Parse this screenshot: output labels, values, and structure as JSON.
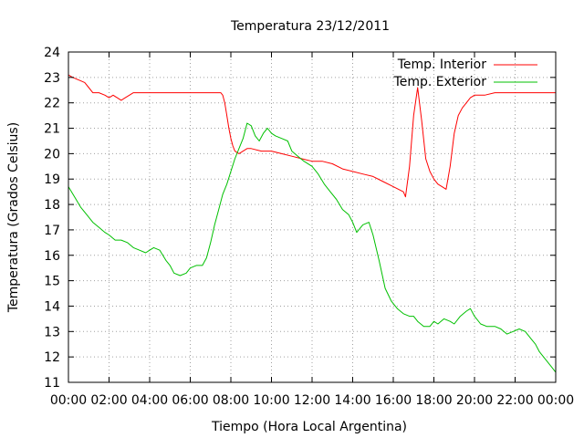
{
  "chart_data": {
    "type": "line",
    "title": "Temperatura 23/12/2011",
    "xlabel": "Tiempo (Hora Local Argentina)",
    "ylabel": "Temperatura (Grados Celsius)",
    "xlim": [
      0,
      24
    ],
    "ylim": [
      11,
      24
    ],
    "x_ticks": [
      "00:00",
      "02:00",
      "04:00",
      "06:00",
      "08:00",
      "10:00",
      "12:00",
      "14:00",
      "16:00",
      "18:00",
      "20:00",
      "22:00",
      "00:00"
    ],
    "y_ticks": [
      "11",
      "12",
      "13",
      "14",
      "15",
      "16",
      "17",
      "18",
      "19",
      "20",
      "21",
      "22",
      "23",
      "24"
    ],
    "grid": true,
    "legend_position": "top-right",
    "series": [
      {
        "name": "Temp. Interior",
        "color": "#ff0000",
        "x": [
          0,
          0.2,
          0.5,
          0.8,
          1.0,
          1.2,
          1.5,
          1.8,
          2.0,
          2.2,
          2.4,
          2.6,
          2.8,
          3.0,
          3.2,
          4.0,
          5.0,
          6.0,
          7.0,
          7.5,
          7.6,
          7.7,
          7.8,
          7.9,
          8.0,
          8.1,
          8.2,
          8.4,
          8.6,
          8.8,
          9.0,
          9.5,
          10.0,
          10.5,
          11.0,
          11.5,
          12.0,
          12.5,
          13.0,
          13.5,
          14.0,
          14.5,
          15.0,
          15.5,
          16.0,
          16.5,
          16.6,
          16.8,
          17.0,
          17.2,
          17.4,
          17.6,
          17.8,
          18.0,
          18.2,
          18.4,
          18.6,
          18.8,
          19.0,
          19.2,
          19.4,
          19.6,
          19.8,
          20.0,
          20.5,
          21.0,
          22.0,
          23.0,
          24.0
        ],
        "values": [
          23.1,
          23.0,
          22.9,
          22.8,
          22.6,
          22.4,
          22.4,
          22.3,
          22.2,
          22.3,
          22.2,
          22.1,
          22.2,
          22.3,
          22.4,
          22.4,
          22.4,
          22.4,
          22.4,
          22.4,
          22.3,
          22.0,
          21.5,
          21.0,
          20.6,
          20.3,
          20.1,
          20.0,
          20.1,
          20.2,
          20.2,
          20.1,
          20.1,
          20.0,
          19.9,
          19.8,
          19.7,
          19.7,
          19.6,
          19.4,
          19.3,
          19.2,
          19.1,
          18.9,
          18.7,
          18.5,
          18.3,
          19.5,
          21.5,
          22.6,
          21.3,
          19.8,
          19.3,
          19.0,
          18.8,
          18.7,
          18.6,
          19.5,
          20.8,
          21.5,
          21.8,
          22.0,
          22.2,
          22.3,
          22.3,
          22.4,
          22.4,
          22.4,
          22.4
        ]
      },
      {
        "name": "Temp. Exterior",
        "color": "#00c000",
        "x": [
          0,
          0.3,
          0.6,
          0.9,
          1.2,
          1.5,
          1.8,
          2.0,
          2.3,
          2.6,
          2.9,
          3.2,
          3.5,
          3.8,
          4.0,
          4.2,
          4.5,
          4.8,
          5.0,
          5.2,
          5.5,
          5.8,
          6.0,
          6.3,
          6.6,
          6.8,
          7.0,
          7.2,
          7.4,
          7.6,
          7.8,
          8.0,
          8.2,
          8.4,
          8.6,
          8.8,
          9.0,
          9.2,
          9.4,
          9.6,
          9.8,
          10.0,
          10.2,
          10.5,
          10.8,
          11.0,
          11.3,
          11.6,
          12.0,
          12.3,
          12.6,
          12.9,
          13.2,
          13.5,
          13.8,
          14.0,
          14.2,
          14.5,
          14.8,
          15.0,
          15.3,
          15.6,
          15.9,
          16.2,
          16.5,
          16.8,
          17.0,
          17.2,
          17.5,
          17.8,
          18.0,
          18.2,
          18.5,
          18.8,
          19.0,
          19.3,
          19.6,
          19.8,
          20.0,
          20.3,
          20.6,
          21.0,
          21.3,
          21.6,
          21.9,
          22.2,
          22.5,
          22.8,
          23.0,
          23.2,
          23.5,
          23.8,
          24.0
        ],
        "values": [
          18.7,
          18.3,
          17.9,
          17.6,
          17.3,
          17.1,
          16.9,
          16.8,
          16.6,
          16.6,
          16.5,
          16.3,
          16.2,
          16.1,
          16.2,
          16.3,
          16.2,
          15.8,
          15.6,
          15.3,
          15.2,
          15.3,
          15.5,
          15.6,
          15.6,
          15.9,
          16.5,
          17.2,
          17.8,
          18.4,
          18.8,
          19.3,
          19.8,
          20.2,
          20.6,
          21.2,
          21.1,
          20.7,
          20.5,
          20.8,
          21.0,
          20.8,
          20.7,
          20.6,
          20.5,
          20.1,
          19.9,
          19.7,
          19.5,
          19.2,
          18.8,
          18.5,
          18.2,
          17.8,
          17.6,
          17.3,
          16.9,
          17.2,
          17.3,
          16.8,
          15.8,
          14.7,
          14.2,
          13.9,
          13.7,
          13.6,
          13.6,
          13.4,
          13.2,
          13.2,
          13.4,
          13.3,
          13.5,
          13.4,
          13.3,
          13.6,
          13.8,
          13.9,
          13.6,
          13.3,
          13.2,
          13.2,
          13.1,
          12.9,
          13.0,
          13.1,
          13.0,
          12.7,
          12.5,
          12.2,
          11.9,
          11.6,
          11.4
        ]
      }
    ]
  }
}
